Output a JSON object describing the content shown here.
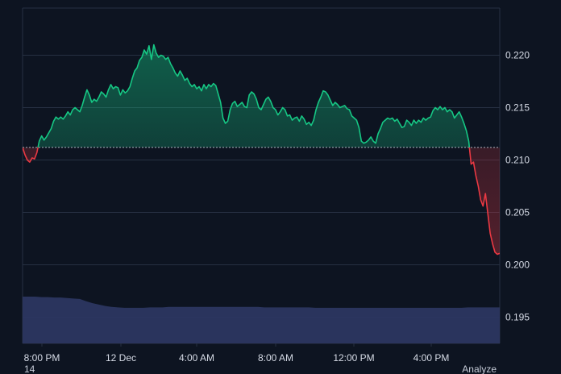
{
  "chart_data": {
    "type": "area",
    "title": "",
    "xlabel": "",
    "ylabel": "",
    "reference_value": 0.2112,
    "x_tick_labels": [
      "8:00 PM",
      "12 Dec",
      "4:00 AM",
      "8:00 AM",
      "12:00 PM",
      "4:00 PM"
    ],
    "y_tick_labels": [
      "0.220",
      "0.215",
      "0.210",
      "0.205",
      "0.200",
      "0.195"
    ],
    "y_tick_values": [
      0.22,
      0.215,
      0.21,
      0.205,
      0.2,
      0.195
    ],
    "ylim": [
      0.1925,
      0.2245
    ],
    "grid": true,
    "legend": "none",
    "colors": {
      "above": "#16c784",
      "below": "#ea3943",
      "baseline": "#cfd6e4",
      "volume": "#2d3763",
      "grid": "#263042"
    },
    "series": [
      {
        "values": [
          0.2112,
          0.2105,
          0.21,
          0.2098,
          0.2102,
          0.2101,
          0.2107,
          0.2118,
          0.2123,
          0.2119,
          0.2122,
          0.2126,
          0.213,
          0.2137,
          0.2141,
          0.2139,
          0.2141,
          0.2139,
          0.2142,
          0.2146,
          0.2143,
          0.2148,
          0.215,
          0.2148,
          0.2146,
          0.2152,
          0.216,
          0.2167,
          0.2162,
          0.2155,
          0.2158,
          0.2156,
          0.216,
          0.2165,
          0.2163,
          0.216,
          0.2167,
          0.2172,
          0.2168,
          0.217,
          0.2169,
          0.2162,
          0.2167,
          0.2164,
          0.2166,
          0.217,
          0.2178,
          0.2185,
          0.2188,
          0.2195,
          0.2198,
          0.2205,
          0.2201,
          0.2209,
          0.2196,
          0.221,
          0.2202,
          0.2198,
          0.22,
          0.2199,
          0.2196,
          0.2198,
          0.2192,
          0.2188,
          0.2183,
          0.218,
          0.2185,
          0.2181,
          0.2176,
          0.2178,
          0.2173,
          0.217,
          0.2172,
          0.2168,
          0.217,
          0.2166,
          0.2172,
          0.2168,
          0.2172,
          0.217,
          0.2173,
          0.2171,
          0.2163,
          0.2155,
          0.214,
          0.2135,
          0.2137,
          0.2148,
          0.2154,
          0.2156,
          0.2151,
          0.2153,
          0.2155,
          0.2151,
          0.215,
          0.2162,
          0.2165,
          0.2163,
          0.2158,
          0.215,
          0.2148,
          0.2153,
          0.2158,
          0.216,
          0.2156,
          0.215,
          0.2148,
          0.2143,
          0.2146,
          0.215,
          0.2148,
          0.2142,
          0.2143,
          0.2138,
          0.214,
          0.2141,
          0.2137,
          0.2142,
          0.2139,
          0.2134,
          0.2136,
          0.2133,
          0.2138,
          0.2148,
          0.2155,
          0.216,
          0.2166,
          0.2165,
          0.2162,
          0.2157,
          0.2152,
          0.2155,
          0.2153,
          0.215,
          0.2151,
          0.2152,
          0.2149,
          0.2148,
          0.2142,
          0.214,
          0.2138,
          0.2131,
          0.2118,
          0.2116,
          0.2117,
          0.2119,
          0.2122,
          0.2118,
          0.2116,
          0.2125,
          0.213,
          0.2136,
          0.2138,
          0.214,
          0.2139,
          0.214,
          0.2137,
          0.2139,
          0.2135,
          0.2131,
          0.2132,
          0.2138,
          0.2136,
          0.2133,
          0.2138,
          0.2135,
          0.2138,
          0.2136,
          0.214,
          0.2138,
          0.214,
          0.2141,
          0.2147,
          0.215,
          0.2148,
          0.2151,
          0.2148,
          0.215,
          0.2146,
          0.2148,
          0.2146,
          0.214,
          0.2143,
          0.2146,
          0.2141,
          0.2135,
          0.2128,
          0.2118,
          0.2096,
          0.2098,
          0.2085,
          0.2075,
          0.2062,
          0.2056,
          0.2068,
          0.2049,
          0.203,
          0.202,
          0.2012,
          0.201,
          0.2011
        ],
        "volume_relative": [
          1.0,
          1.0,
          1.0,
          0.99,
          0.99,
          0.98,
          0.98,
          0.97,
          0.96,
          0.95,
          0.9,
          0.86,
          0.83,
          0.8,
          0.78,
          0.77,
          0.76,
          0.76,
          0.76,
          0.76,
          0.77,
          0.77,
          0.77,
          0.78,
          0.78,
          0.78,
          0.78,
          0.78,
          0.78,
          0.78,
          0.78,
          0.78,
          0.78,
          0.78,
          0.78,
          0.78,
          0.78,
          0.78,
          0.77,
          0.77,
          0.77,
          0.77,
          0.77,
          0.77,
          0.77,
          0.77,
          0.76,
          0.76,
          0.76,
          0.76,
          0.76,
          0.76,
          0.76,
          0.76,
          0.76,
          0.76,
          0.76,
          0.76,
          0.76,
          0.76,
          0.76,
          0.76,
          0.76,
          0.76,
          0.76,
          0.76,
          0.76,
          0.76,
          0.76,
          0.76,
          0.77,
          0.77,
          0.77,
          0.77,
          0.77,
          0.77
        ]
      }
    ],
    "footer": {
      "left": "14",
      "right": "Analyze"
    }
  }
}
